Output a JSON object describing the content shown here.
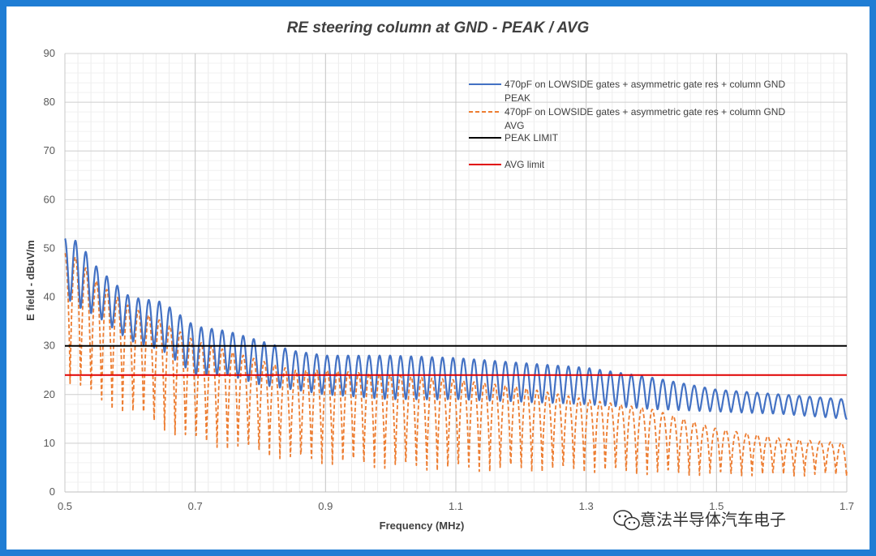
{
  "chart_data": {
    "type": "line",
    "title": "RE steering column at GND - PEAK / AVG",
    "xlabel": "Frequency (MHz)",
    "ylabel": "E field - dBuV/m",
    "xlim": [
      0.5,
      1.7
    ],
    "ylim": [
      0,
      90
    ],
    "x_ticks": [
      0.5,
      0.7,
      0.9,
      1.1,
      1.3,
      1.5,
      1.7
    ],
    "x_tick_labels": [
      "0.5",
      "0.7",
      "0.9",
      "1.1",
      "1.3",
      "1.5",
      "1.7"
    ],
    "y_ticks": [
      0,
      10,
      20,
      30,
      40,
      50,
      60,
      70,
      80,
      90
    ],
    "y_tick_labels": [
      "0",
      "10",
      "20",
      "30",
      "40",
      "50",
      "60",
      "70",
      "80",
      "90"
    ],
    "grid": true,
    "legend_position": "top-right",
    "series": [
      {
        "name": "470pF on LOWSIDE gates + asymmetric gate res + column GND PEAK",
        "legend_lines": [
          "470pF on LOWSIDE gates + asymmetric gate res + column GND",
          "PEAK"
        ],
        "color": "#4472c4",
        "style": "solid",
        "kind": "oscillating",
        "ripple_period_mhz": 0.0161,
        "x": [
          0.5,
          0.52,
          0.55,
          0.6,
          0.65,
          0.7,
          0.75,
          0.8,
          0.85,
          0.9,
          1.0,
          1.1,
          1.2,
          1.3,
          1.4,
          1.5,
          1.6,
          1.7
        ],
        "upper": [
          52,
          51.5,
          46,
          40,
          39,
          34,
          33,
          31,
          29,
          28,
          28,
          27.5,
          26.5,
          25.5,
          23.5,
          21,
          20,
          19
        ],
        "lower": [
          40,
          38,
          36,
          31,
          29,
          24,
          24,
          22,
          21,
          20,
          19,
          19,
          18.5,
          18,
          17,
          16.5,
          16,
          15
        ]
      },
      {
        "name": "470pF on LOWSIDE gates + asymmetric gate res + column GND AVG",
        "legend_lines": [
          "470pF on LOWSIDE gates + asymmetric gate res + column GND",
          "AVG"
        ],
        "color": "#ed7d31",
        "style": "dashed",
        "kind": "oscillating",
        "ripple_period_mhz": 0.0161,
        "x": [
          0.5,
          0.52,
          0.55,
          0.6,
          0.65,
          0.7,
          0.75,
          0.8,
          0.85,
          0.9,
          1.0,
          1.1,
          1.2,
          1.3,
          1.4,
          1.5,
          1.6,
          1.7
        ],
        "upper": [
          49,
          48,
          43,
          38,
          35,
          31,
          29,
          27,
          25,
          25,
          24,
          23,
          21.5,
          19,
          17,
          13,
          11,
          10
        ],
        "lower": [
          22,
          20,
          17,
          15,
          12,
          9,
          8,
          7,
          5.5,
          5,
          4,
          3.5,
          3.5,
          3.5,
          3,
          3,
          3,
          3
        ]
      },
      {
        "name": "PEAK LIMIT",
        "legend_lines": [
          "PEAK LIMIT"
        ],
        "color": "#000000",
        "style": "solid",
        "kind": "constant",
        "x": [
          0.5,
          1.7
        ],
        "y": [
          30,
          30
        ]
      },
      {
        "name": "AVG limit",
        "legend_lines": [
          "AVG limit"
        ],
        "color": "#e00000",
        "style": "solid",
        "kind": "constant",
        "x": [
          0.5,
          1.7
        ],
        "y": [
          24,
          24
        ]
      }
    ]
  },
  "watermark": {
    "icon": "wechat-icon",
    "text": "意法半导体汽车电子"
  }
}
